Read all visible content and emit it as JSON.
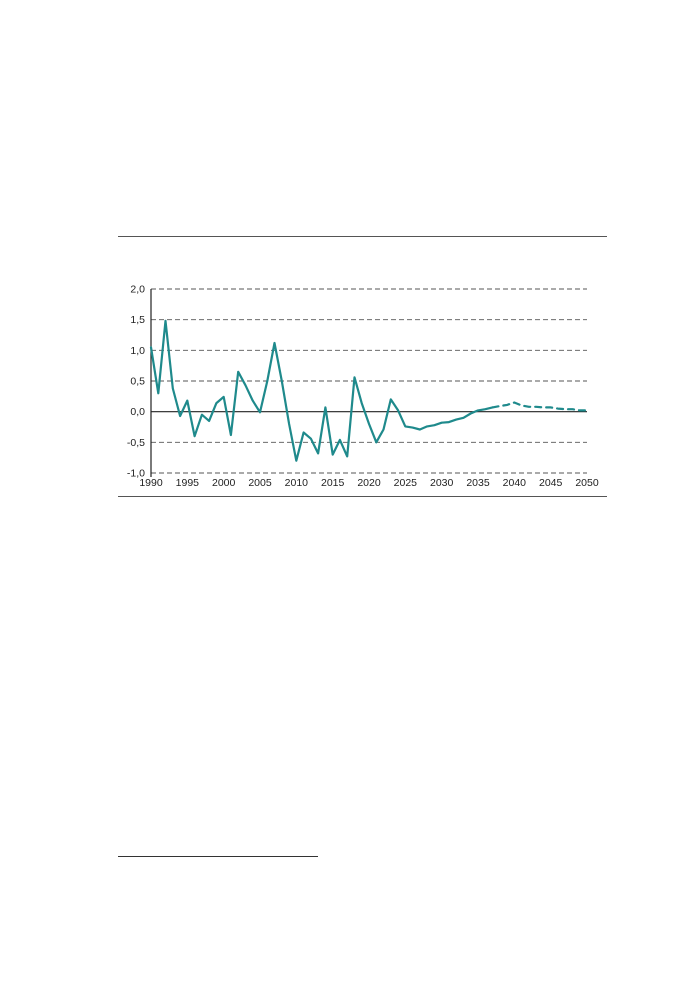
{
  "chart_data": {
    "type": "line",
    "title": "",
    "xlabel": "",
    "ylabel": "",
    "xlim": [
      1990,
      2050
    ],
    "ylim": [
      -1.0,
      2.0
    ],
    "x_ticks": [
      "1990",
      "1995",
      "2000",
      "2005",
      "2010",
      "2015",
      "2020",
      "2025",
      "2030",
      "2035",
      "2040",
      "2045",
      "2050"
    ],
    "y_ticks": [
      "2,0",
      "1,5",
      "1,0",
      "0,5",
      "0,0",
      "-0,5",
      "-1,0"
    ],
    "grid": "horizontal dashed",
    "colors": {
      "series": "#1f8a8c",
      "grid": "#555555",
      "axis": "#222222"
    },
    "series": [
      {
        "style": "solid",
        "x": [
          1990,
          1991,
          1992,
          1993,
          1994,
          1995,
          1996,
          1997,
          1998,
          1999,
          2000,
          2001,
          2002,
          2003,
          2004,
          2005,
          2006,
          2007,
          2008,
          2009,
          2010,
          2011,
          2012,
          2013,
          2014,
          2015,
          2016,
          2017,
          2018,
          2019,
          2020,
          2021,
          2022,
          2023,
          2024,
          2025,
          2026,
          2027,
          2028,
          2029,
          2030,
          2031,
          2032,
          2033,
          2034,
          2035,
          2036,
          2037
        ],
        "y": [
          1.05,
          0.3,
          1.48,
          0.38,
          -0.07,
          0.18,
          -0.4,
          -0.05,
          -0.15,
          0.14,
          0.24,
          -0.38,
          0.65,
          0.43,
          0.18,
          -0.01,
          0.5,
          1.12,
          0.5,
          -0.2,
          -0.8,
          -0.34,
          -0.44,
          -0.68,
          0.07,
          -0.7,
          -0.46,
          -0.73,
          0.56,
          0.14,
          -0.2,
          -0.5,
          -0.29,
          0.2,
          0.02,
          -0.24,
          -0.26,
          -0.29,
          -0.24,
          -0.22,
          -0.18,
          -0.17,
          -0.13,
          -0.1,
          -0.03,
          0.02,
          0.04,
          0.07
        ]
      },
      {
        "style": "dashed",
        "x": [
          2037,
          2038,
          2039,
          2040,
          2041,
          2042,
          2043,
          2044,
          2045,
          2046,
          2047,
          2048,
          2049,
          2050
        ],
        "y": [
          0.07,
          0.09,
          0.11,
          0.15,
          0.1,
          0.08,
          0.08,
          0.07,
          0.07,
          0.05,
          0.04,
          0.04,
          0.02,
          0.02
        ]
      }
    ]
  }
}
